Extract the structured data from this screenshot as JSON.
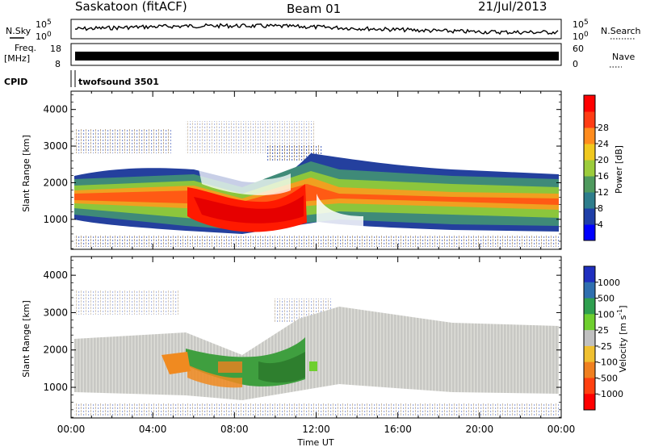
{
  "header": {
    "station": "Saskatoon (fitACF)",
    "beam": "Beam 01",
    "date": "21/Jul/2013"
  },
  "labels": {
    "nsky": "N.Sky",
    "freq_line1": "Freq.",
    "freq_line2": "[MHz]",
    "cpid": "CPID",
    "nsearch": "N.Search",
    "nave": "Nave",
    "cpid_value": "twofsound 3501",
    "xlabel": "Time UT"
  },
  "strip_ticks": {
    "noise_left": [
      "10^5",
      "10^0"
    ],
    "noise_right": [
      "10^5",
      "10^0"
    ],
    "freq_left": [
      "18",
      "8"
    ],
    "nave_right": [
      "60",
      "0"
    ]
  },
  "chart_data": [
    {
      "type": "heatmap",
      "panel": "power",
      "ylabel": "Slant Range [km]",
      "ylim": [
        180,
        4500
      ],
      "yticks": [
        "1000",
        "2000",
        "3000",
        "4000"
      ],
      "xticks": [
        "00:00",
        "04:00",
        "08:00",
        "12:00",
        "16:00",
        "20:00",
        "00:00"
      ],
      "xlim_hours": [
        0,
        24
      ],
      "colorbar": {
        "label": "Power [dB]",
        "ticks": [
          "4",
          "8",
          "12",
          "16",
          "20",
          "24",
          "28"
        ],
        "colors": [
          "#0000ff",
          "#1f3fa8",
          "#2e7d8c",
          "#4f9a5e",
          "#9ccc3c",
          "#f0c81e",
          "#ff8c1e",
          "#ff3c14",
          "#ff0000"
        ]
      }
    },
    {
      "type": "heatmap",
      "panel": "velocity",
      "ylabel": "Slant Range [km]",
      "ylim": [
        180,
        4500
      ],
      "yticks": [
        "1000",
        "2000",
        "3000",
        "4000"
      ],
      "xticks": [
        "00:00",
        "04:00",
        "08:00",
        "12:00",
        "16:00",
        "20:00",
        "00:00"
      ],
      "xlim_hours": [
        0,
        24
      ],
      "colorbar": {
        "label": "Velocity [m s^-1]",
        "ticks": [
          "1000",
          "500",
          "100",
          "25",
          "-25",
          "-100",
          "-500",
          "-1000"
        ],
        "colors": [
          "#1f2fbf",
          "#2f6faf",
          "#2f9f4f",
          "#6fcf2f",
          "#c0c0c0",
          "#f0c030",
          "#f08020",
          "#ff4010",
          "#ff0000"
        ]
      }
    }
  ]
}
